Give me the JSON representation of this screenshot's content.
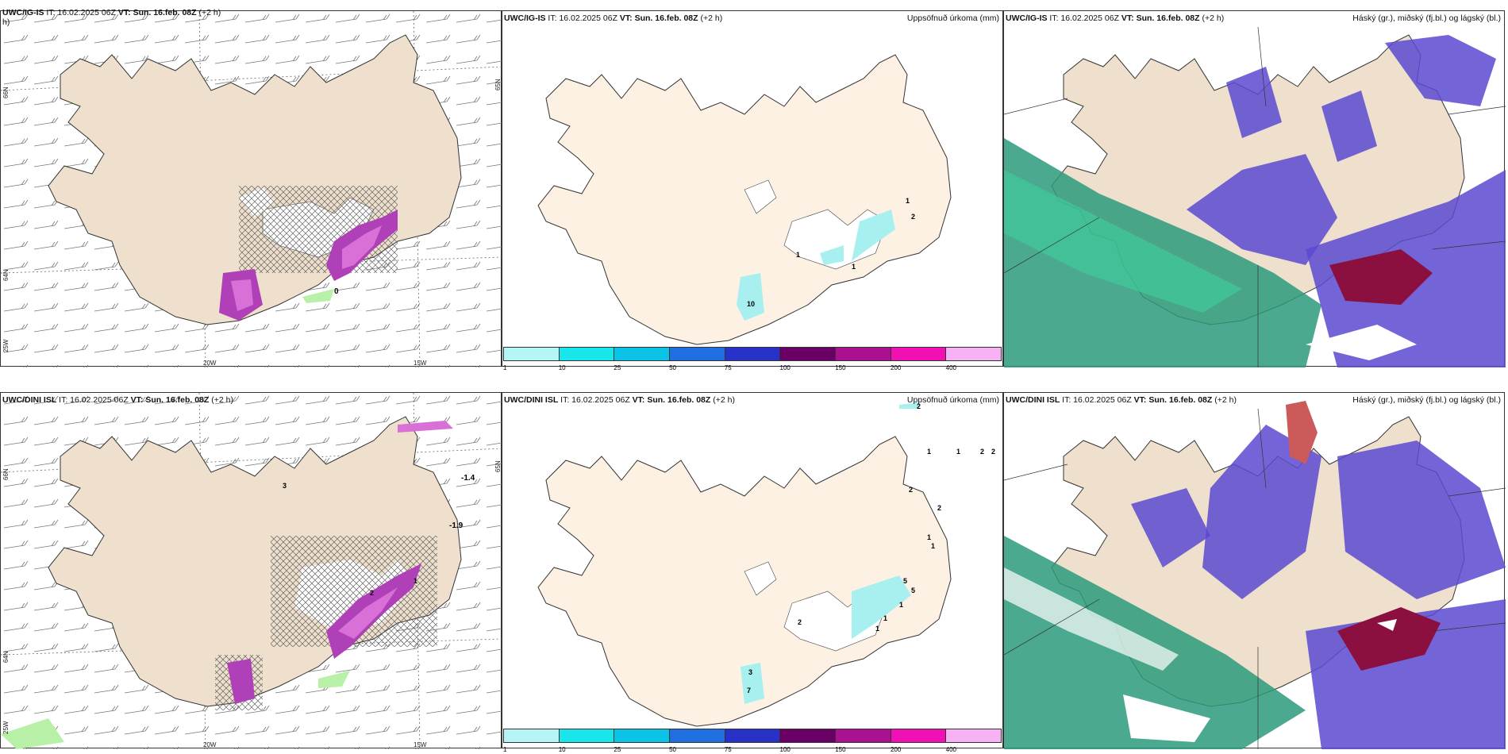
{
  "panels": {
    "top_left": {
      "model": "UWC/IG-IS",
      "it": "IT: 16.02.2025 06Z",
      "vt_label": "VT:",
      "vt": "Sun. 16.feb. 08Z",
      "lead": "(+2 h)",
      "lead_wrap": "h)"
    },
    "top_mid": {
      "model": "UWC/IG-IS",
      "it": "IT: 16.02.2025 06Z",
      "vt_label": "VT:",
      "vt": "Sun. 16.feb. 08Z",
      "lead": "(+2 h)",
      "right_title": "Uppsöfnuð úrkoma (mm)"
    },
    "top_right": {
      "model": "UWC/IG-IS",
      "it": "IT: 16.02.2025 06Z",
      "vt_label": "VT:",
      "vt": "Sun. 16.feb. 08Z",
      "lead": "(+2 h)",
      "right_title": "Háský (gr.), miðský (fj.bl.) og lágský (bl.)"
    },
    "bot_left": {
      "model": "UWC/DINI ISL",
      "it": "IT: 16.02.2025 06Z",
      "vt_label": "VT:",
      "vt": "Sun. 16.feb. 08Z",
      "lead": "(+2 h)"
    },
    "bot_mid": {
      "model": "UWC/DINI ISL",
      "it": "IT: 16.02.2025 06Z",
      "vt_label": "VT:",
      "vt": "Sun. 16.feb. 08Z",
      "lead": "(+2 h)",
      "right_title": "Uppsöfnuð úrkoma (mm)"
    },
    "bot_right": {
      "model": "UWC/DINI ISL",
      "it": "IT: 16.02.2025 06Z",
      "vt_label": "VT:",
      "vt": "Sun. 16.feb. 08Z",
      "lead": "(+2 h)",
      "right_title": "Háský (gr.), miðský (fj.bl.) og lágský (bl.)"
    }
  },
  "axes": {
    "lon_20w": "20W",
    "lon_15w": "15W",
    "lon_25w": "25W",
    "lat_66n": "66N",
    "lat_64n": "64N",
    "lat_65n": "65N"
  },
  "legend": {
    "ticks": [
      "1",
      "10",
      "25",
      "50",
      "75",
      "100",
      "150",
      "200",
      "400"
    ],
    "colors": [
      "#b6f5f5",
      "#19e6ea",
      "#0bc3e6",
      "#1f6fe0",
      "#2832c8",
      "#6a0066",
      "#aa1090",
      "#f010b4",
      "#f6b2f2"
    ]
  },
  "annotations": {
    "tl": [
      "0"
    ],
    "bl": [
      "-1.4",
      "-1.9",
      "3",
      "2",
      "1"
    ],
    "tm": [
      "1",
      "2",
      "1",
      "1",
      "10"
    ],
    "bm": [
      "2",
      "1",
      "1",
      "2",
      "2",
      "2",
      "2",
      "1",
      "1",
      "5",
      "5",
      "1",
      "1",
      "2",
      "1",
      "3",
      "7"
    ]
  },
  "colors": {
    "land": "#eee0cc",
    "land_light": "#fdf1e4",
    "high_cloud": "#2a9a7a",
    "mid_cloud": "#5a4ad0",
    "low_cloud": "#8b1040"
  }
}
